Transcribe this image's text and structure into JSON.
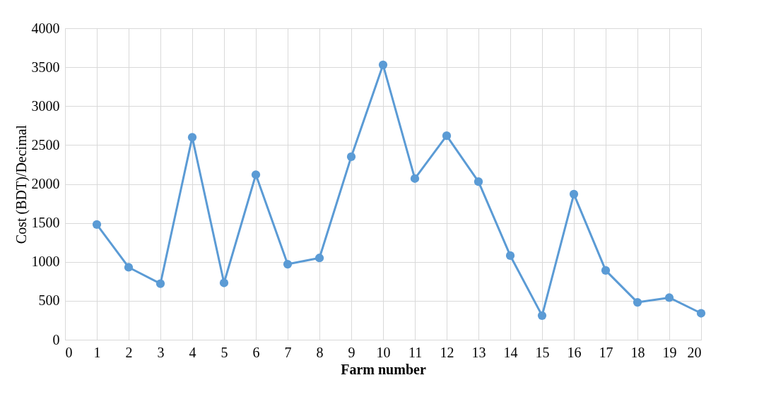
{
  "chart_data": {
    "type": "line",
    "xlabel": "Farm number",
    "ylabel": "Cost (BDT)/Decimal",
    "x": [
      1,
      2,
      3,
      4,
      5,
      6,
      7,
      8,
      9,
      10,
      11,
      12,
      13,
      14,
      15,
      16,
      17,
      18,
      19,
      20
    ],
    "series": [
      {
        "color": "#5b9bd5",
        "values": [
          1480,
          930,
          720,
          2600,
          730,
          2120,
          970,
          1050,
          2350,
          3530,
          2070,
          2620,
          2030,
          1080,
          310,
          1870,
          890,
          480,
          540,
          340
        ]
      }
    ],
    "xlim": [
      0,
      20
    ],
    "xticks": [
      0,
      1,
      2,
      3,
      4,
      5,
      6,
      7,
      8,
      9,
      10,
      11,
      12,
      13,
      14,
      15,
      16,
      17,
      18,
      19,
      20
    ],
    "ylim": [
      0,
      4000
    ],
    "yticks": [
      0,
      500,
      1000,
      1500,
      2000,
      2500,
      3000,
      3500,
      4000
    ],
    "grid": true,
    "marker": "circle",
    "line_style": "solid"
  }
}
